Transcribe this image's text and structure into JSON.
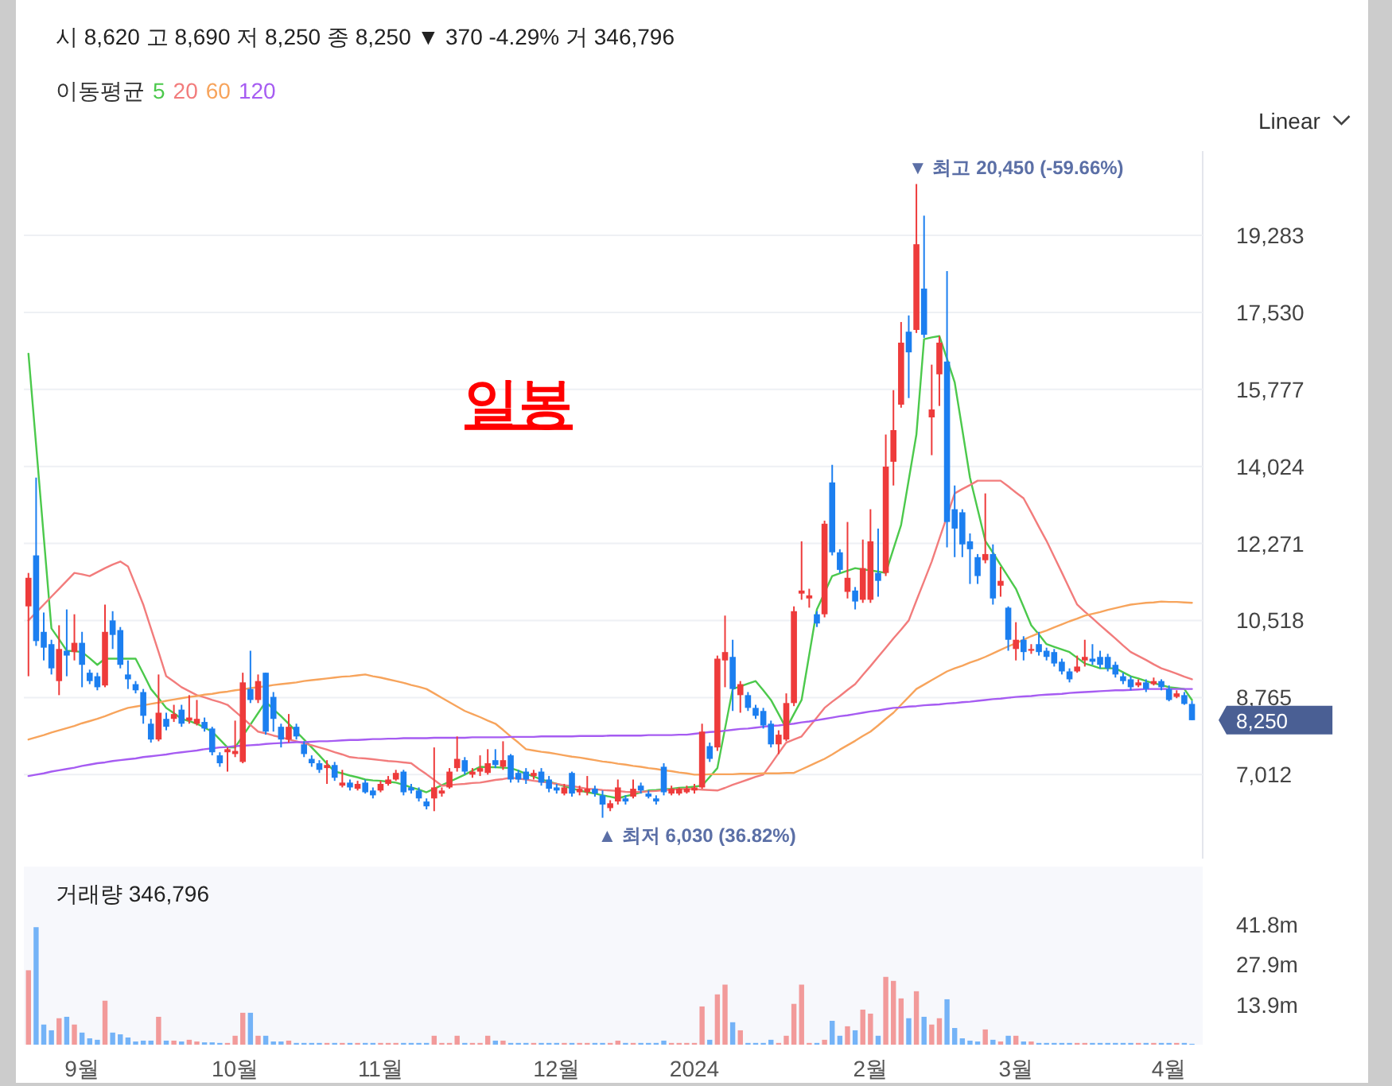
{
  "chart_data": [
    {
      "type": "candlestick",
      "title": "시 8,620  고 8,690  저 8,250  종 8,250  ▼ 370 -4.29%  거 346,796",
      "categories": [
        null,
        null,
        null,
        null,
        null,
        null,
        null,
        null,
        null,
        null,
        null,
        null,
        null,
        null,
        null,
        null,
        null,
        null,
        null,
        null,
        null,
        null,
        null,
        null,
        null,
        null,
        null,
        null,
        null,
        null,
        null,
        null,
        null,
        null,
        null,
        null,
        null,
        null,
        null,
        null,
        null,
        null,
        null,
        null,
        null,
        null,
        null,
        null,
        null,
        null,
        null,
        null,
        null,
        null,
        null,
        null,
        null,
        null,
        null,
        null,
        null,
        null,
        null,
        null,
        null,
        null,
        null,
        null,
        null,
        null,
        null,
        null,
        null,
        null,
        null,
        null,
        null,
        null,
        null,
        null,
        null,
        null,
        null,
        null,
        null,
        null,
        null,
        null,
        null,
        null,
        null,
        null,
        null,
        null,
        null,
        null,
        null,
        null,
        null,
        null,
        null,
        null,
        null,
        null,
        null,
        null,
        null,
        null,
        null,
        null,
        null,
        null,
        null,
        null,
        null,
        null,
        null,
        null,
        null,
        null,
        null,
        null,
        null,
        null,
        null,
        null,
        null,
        null,
        null,
        null,
        null,
        null,
        null,
        null,
        null,
        null,
        null,
        null,
        null,
        null,
        null,
        null,
        null,
        null,
        null,
        null,
        null,
        null,
        null,
        null,
        null,
        null,
        null
      ],
      "ohlc": [
        [
          10840,
          11600,
          9250,
          11490
        ],
        [
          12000,
          13770,
          9940,
          10050
        ],
        [
          10260,
          10700,
          9610,
          9900
        ],
        [
          9980,
          10080,
          9290,
          9430
        ],
        [
          9140,
          10410,
          8820,
          9870
        ],
        [
          9830,
          10770,
          9250,
          9720
        ],
        [
          9800,
          10660,
          9610,
          10010
        ],
        [
          10010,
          10260,
          9000,
          9510
        ],
        [
          9330,
          9400,
          9070,
          9140
        ],
        [
          9250,
          9330,
          8930,
          9000
        ],
        [
          9040,
          10880,
          9000,
          10260
        ],
        [
          10520,
          10730,
          9870,
          10190
        ],
        [
          10300,
          10370,
          9430,
          9510
        ],
        [
          9290,
          9610,
          8960,
          9180
        ],
        [
          9070,
          9140,
          8860,
          8930
        ],
        [
          8890,
          8960,
          8170,
          8350
        ],
        [
          8170,
          8280,
          7740,
          7810
        ],
        [
          7810,
          9290,
          7770,
          8420
        ],
        [
          8280,
          8420,
          8020,
          8100
        ],
        [
          8280,
          8600,
          8210,
          8390
        ],
        [
          8490,
          8600,
          8100,
          8170
        ],
        [
          8240,
          8820,
          8170,
          8310
        ],
        [
          8170,
          8710,
          8130,
          8280
        ],
        [
          8210,
          8310,
          7990,
          8060
        ],
        [
          8060,
          8100,
          7450,
          7520
        ],
        [
          7450,
          7520,
          7190,
          7270
        ],
        [
          7520,
          7630,
          7080,
          7590
        ],
        [
          7480,
          8240,
          7410,
          7550
        ],
        [
          7300,
          9330,
          7270,
          9110
        ],
        [
          8960,
          9830,
          8640,
          8710
        ],
        [
          8710,
          9290,
          8640,
          9140
        ],
        [
          9330,
          9330,
          7920,
          7990
        ],
        [
          8780,
          8890,
          7990,
          8280
        ],
        [
          8100,
          8170,
          7630,
          7810
        ],
        [
          7810,
          8390,
          7740,
          8100
        ],
        [
          8100,
          8170,
          7810,
          7880
        ],
        [
          7700,
          7770,
          7410,
          7480
        ],
        [
          7370,
          7450,
          7190,
          7270
        ],
        [
          7270,
          7340,
          7050,
          7120
        ],
        [
          7160,
          7340,
          6800,
          7230
        ],
        [
          7230,
          7300,
          6870,
          6940
        ],
        [
          6760,
          7120,
          6720,
          6830
        ],
        [
          6830,
          6900,
          6650,
          6720
        ],
        [
          6690,
          6870,
          6650,
          6800
        ],
        [
          6830,
          6900,
          6580,
          6610
        ],
        [
          6650,
          6720,
          6470,
          6540
        ],
        [
          6650,
          6870,
          6610,
          6800
        ],
        [
          6800,
          6980,
          6760,
          6900
        ],
        [
          6900,
          7120,
          6870,
          7050
        ],
        [
          7080,
          7120,
          6540,
          6610
        ],
        [
          6720,
          6800,
          6580,
          6650
        ],
        [
          6650,
          6720,
          6400,
          6470
        ],
        [
          6400,
          6470,
          6220,
          6290
        ],
        [
          6470,
          7630,
          6180,
          6720
        ],
        [
          6580,
          6720,
          6510,
          6650
        ],
        [
          6720,
          7160,
          6690,
          7080
        ],
        [
          7160,
          7880,
          7080,
          7370
        ],
        [
          7340,
          7410,
          7010,
          7080
        ],
        [
          7010,
          7160,
          6940,
          7080
        ],
        [
          7080,
          7450,
          6980,
          7160
        ],
        [
          7050,
          7590,
          7010,
          7270
        ],
        [
          7340,
          7590,
          7160,
          7230
        ],
        [
          7190,
          7770,
          7120,
          7340
        ],
        [
          7450,
          7480,
          6830,
          6900
        ],
        [
          7050,
          7120,
          6830,
          6900
        ],
        [
          7080,
          7160,
          6800,
          6900
        ],
        [
          6980,
          7120,
          6900,
          7050
        ],
        [
          7080,
          7160,
          6760,
          6830
        ],
        [
          6900,
          6980,
          6610,
          6690
        ],
        [
          6720,
          6800,
          6580,
          6650
        ],
        [
          6580,
          6800,
          6540,
          6720
        ],
        [
          7050,
          7080,
          6510,
          6580
        ],
        [
          6610,
          6760,
          6540,
          6690
        ],
        [
          6610,
          6980,
          6540,
          6690
        ],
        [
          6690,
          6760,
          6510,
          6580
        ],
        [
          6540,
          6650,
          6030,
          6330
        ],
        [
          6250,
          6430,
          6180,
          6360
        ],
        [
          6400,
          6900,
          6330,
          6720
        ],
        [
          6470,
          6540,
          6330,
          6400
        ],
        [
          6510,
          6900,
          6470,
          6690
        ],
        [
          6760,
          6830,
          6580,
          6650
        ],
        [
          6580,
          6650,
          6470,
          6510
        ],
        [
          6470,
          6540,
          6330,
          6400
        ],
        [
          7190,
          7270,
          6540,
          6610
        ],
        [
          6580,
          6760,
          6540,
          6690
        ],
        [
          6580,
          6720,
          6540,
          6690
        ],
        [
          6610,
          6760,
          6580,
          6690
        ],
        [
          6650,
          6800,
          6580,
          6720
        ],
        [
          6720,
          8170,
          6690,
          7990
        ],
        [
          7660,
          7740,
          7300,
          7370
        ],
        [
          7630,
          9720,
          7550,
          9650
        ],
        [
          9610,
          10630,
          9000,
          9800
        ],
        [
          9690,
          10080,
          8460,
          8960
        ],
        [
          8820,
          9140,
          8420,
          9070
        ],
        [
          8820,
          8890,
          8460,
          8530
        ],
        [
          8530,
          8600,
          8280,
          8350
        ],
        [
          8460,
          8530,
          8060,
          8130
        ],
        [
          8170,
          8240,
          7630,
          7700
        ],
        [
          7700,
          8020,
          7480,
          7920
        ],
        [
          7810,
          8860,
          7770,
          8640
        ],
        [
          8640,
          10840,
          8570,
          10730
        ],
        [
          11130,
          12320,
          10990,
          11200
        ],
        [
          11020,
          11240,
          10810,
          11090
        ],
        [
          10660,
          10730,
          10370,
          10450
        ],
        [
          10660,
          12790,
          10590,
          12720
        ],
        [
          13660,
          14060,
          12000,
          12070
        ],
        [
          12070,
          12140,
          11600,
          11670
        ],
        [
          11170,
          12760,
          11020,
          11490
        ],
        [
          11200,
          11280,
          10770,
          10950
        ],
        [
          10990,
          12360,
          10920,
          11710
        ],
        [
          10990,
          13050,
          10920,
          12320
        ],
        [
          11600,
          12610,
          11060,
          11420
        ],
        [
          11600,
          14750,
          11530,
          14020
        ],
        [
          14130,
          15760,
          13590,
          14850
        ],
        [
          15430,
          17310,
          15360,
          16840
        ],
        [
          17090,
          17460,
          15580,
          16620
        ],
        [
          17130,
          20450,
          17060,
          19080
        ],
        [
          18070,
          19730,
          16950,
          17020
        ],
        [
          15140,
          16340,
          14280,
          15320
        ],
        [
          16120,
          16990,
          15400,
          16840
        ],
        [
          16410,
          18470,
          12180,
          12760
        ],
        [
          13050,
          13590,
          11960,
          12610
        ],
        [
          12980,
          13050,
          11960,
          12250
        ],
        [
          12320,
          12500,
          11350,
          12140
        ],
        [
          11960,
          12030,
          11350,
          11530
        ],
        [
          11890,
          13410,
          11820,
          12030
        ],
        [
          12030,
          12250,
          10880,
          11020
        ],
        [
          11310,
          11740,
          11060,
          11420
        ],
        [
          10810,
          10840,
          9830,
          10080
        ],
        [
          9870,
          10480,
          9610,
          10080
        ],
        [
          10080,
          10160,
          9610,
          9800
        ],
        [
          9830,
          9980,
          9760,
          9870
        ],
        [
          9980,
          10260,
          9720,
          9800
        ],
        [
          9830,
          9900,
          9610,
          9690
        ],
        [
          9800,
          9870,
          9470,
          9540
        ],
        [
          9580,
          9650,
          9290,
          9360
        ],
        [
          9360,
          9430,
          9110,
          9180
        ],
        [
          9360,
          9720,
          9330,
          9470
        ],
        [
          9610,
          10080,
          9470,
          9690
        ],
        [
          9650,
          9980,
          9510,
          9580
        ],
        [
          9690,
          9830,
          9430,
          9510
        ],
        [
          9690,
          9760,
          9360,
          9430
        ],
        [
          9510,
          9580,
          9220,
          9290
        ],
        [
          9250,
          9330,
          9070,
          9140
        ],
        [
          9180,
          9250,
          8930,
          9000
        ],
        [
          9040,
          9180,
          9000,
          9110
        ],
        [
          9110,
          9180,
          8890,
          8960
        ],
        [
          9070,
          9220,
          9040,
          9140
        ],
        [
          9140,
          9180,
          8930,
          9000
        ],
        [
          8960,
          9040,
          8680,
          8710
        ],
        [
          8780,
          8930,
          8750,
          8860
        ],
        [
          8820,
          8890,
          8600,
          8620
        ],
        [
          8620,
          8690,
          8250,
          8250
        ]
      ],
      "colors": [
        "#ee3b3b",
        "#1c7ff0",
        "#1c7ff0",
        "#1c7ff0",
        "#ee3b3b",
        "#1c7ff0",
        "#ee3b3b",
        "#1c7ff0",
        "#1c7ff0",
        "#1c7ff0",
        "#ee3b3b",
        "#1c7ff0",
        "#1c7ff0",
        "#1c7ff0",
        "#1c7ff0",
        "#1c7ff0",
        "#1c7ff0",
        "#ee3b3b",
        "#1c7ff0",
        "#ee3b3b",
        "#1c7ff0",
        "#ee3b3b",
        "#ee3b3b",
        "#1c7ff0",
        "#1c7ff0",
        "#1c7ff0",
        "#ee3b3b",
        "#ee3b3b",
        "#ee3b3b",
        "#1c7ff0",
        "#ee3b3b",
        "#1c7ff0",
        "#1c7ff0",
        "#1c7ff0",
        "#ee3b3b",
        "#1c7ff0",
        "#1c7ff0",
        "#1c7ff0",
        "#1c7ff0",
        "#ee3b3b",
        "#1c7ff0",
        "#ee3b3b",
        "#1c7ff0",
        "#ee3b3b",
        "#1c7ff0",
        "#1c7ff0",
        "#ee3b3b",
        "#ee3b3b",
        "#ee3b3b",
        "#1c7ff0",
        "#1c7ff0",
        "#1c7ff0",
        "#1c7ff0",
        "#ee3b3b",
        "#ee3b3b",
        "#ee3b3b",
        "#ee3b3b",
        "#1c7ff0",
        "#ee3b3b",
        "#ee3b3b",
        "#ee3b3b",
        "#1c7ff0",
        "#ee3b3b",
        "#1c7ff0",
        "#1c7ff0",
        "#1c7ff0",
        "#ee3b3b",
        "#1c7ff0",
        "#1c7ff0",
        "#1c7ff0",
        "#ee3b3b",
        "#1c7ff0",
        "#ee3b3b",
        "#ee3b3b",
        "#1c7ff0",
        "#1c7ff0",
        "#ee3b3b",
        "#ee3b3b",
        "#1c7ff0",
        "#ee3b3b",
        "#1c7ff0",
        "#1c7ff0",
        "#1c7ff0",
        "#1c7ff0",
        "#ee3b3b",
        "#ee3b3b",
        "#ee3b3b",
        "#ee3b3b",
        "#ee3b3b",
        "#1c7ff0",
        "#ee3b3b",
        "#ee3b3b",
        "#1c7ff0",
        "#ee3b3b",
        "#1c7ff0",
        "#1c7ff0",
        "#1c7ff0",
        "#1c7ff0",
        "#ee3b3b",
        "#ee3b3b",
        "#ee3b3b",
        "#ee3b3b",
        "#ee3b3b",
        "#1c7ff0",
        "#ee3b3b",
        "#1c7ff0",
        "#1c7ff0",
        "#ee3b3b",
        "#1c7ff0",
        "#ee3b3b",
        "#ee3b3b",
        "#1c7ff0",
        "#ee3b3b",
        "#ee3b3b",
        "#ee3b3b",
        "#1c7ff0",
        "#ee3b3b",
        "#1c7ff0",
        "#ee3b3b",
        "#ee3b3b",
        "#1c7ff0",
        "#1c7ff0",
        "#1c7ff0",
        "#1c7ff0",
        "#1c7ff0",
        "#ee3b3b",
        "#1c7ff0",
        "#ee3b3b",
        "#1c7ff0",
        "#ee3b3b",
        "#1c7ff0",
        "#ee3b3b",
        "#1c7ff0",
        "#1c7ff0",
        "#1c7ff0",
        "#1c7ff0",
        "#1c7ff0",
        "#ee3b3b",
        "#ee3b3b",
        "#1c7ff0",
        "#1c7ff0",
        "#1c7ff0",
        "#1c7ff0",
        "#1c7ff0",
        "#1c7ff0",
        "#ee3b3b",
        "#1c7ff0",
        "#ee3b3b",
        "#1c7ff0",
        "#1c7ff0",
        "#ee3b3b",
        "#1c7ff0",
        "#1c7ff0"
      ],
      "series": [
        {
          "type": "line",
          "name": "5",
          "color": "#4cc94c",
          "values": [
            16590,
            14510,
            12420,
            10340,
            10090,
            9830,
            9820,
            9800,
            9660,
            9510,
            9650,
            9650,
            9650,
            9650,
            9650,
            9310,
            8960,
            8750,
            8530,
            8410,
            8280,
            8230,
            8170,
            8080,
            7990,
            7810,
            7630,
            7630,
            7890,
            8150,
            8410,
            8670,
            8500,
            8340,
            8170,
            7990,
            7810,
            7630,
            7450,
            7260,
            7080,
            7040,
            6990,
            6950,
            6900,
            6880,
            6870,
            6850,
            6830,
            6780,
            6720,
            6670,
            6610,
            6690,
            6770,
            6850,
            6930,
            7010,
            7100,
            7190,
            7180,
            7180,
            7170,
            7160,
            7100,
            7030,
            6970,
            6900,
            6850,
            6800,
            6750,
            6700,
            6650,
            6610,
            6580,
            6540,
            6510,
            6470,
            6520,
            6560,
            6610,
            6650,
            6660,
            6680,
            6690,
            6710,
            6720,
            6740,
            6760,
            6960,
            7160,
            8060,
            8960,
            9020,
            9080,
            9140,
            8930,
            8710,
            8390,
            8060,
            8390,
            8710,
            9740,
            10770,
            11150,
            11530,
            11590,
            11650,
            11710,
            11680,
            11660,
            11630,
            11600,
            12150,
            12690,
            13720,
            14750,
            16920,
            16960,
            16990,
            16470,
            15940,
            14860,
            13770,
            13050,
            12330,
            12060,
            11780,
            11510,
            11240,
            10830,
            10410,
            10200,
            9980,
            9920,
            9860,
            9800,
            9670,
            9540,
            9490,
            9430,
            9430,
            9430,
            9340,
            9250,
            9200,
            9140,
            9090,
            9050,
            9000,
            8980,
            8960,
            8710
          ]
        },
        {
          "type": "line",
          "name": "20",
          "color": "#f27c7c",
          "values": [
            10520,
            10700,
            10880,
            11060,
            11240,
            11420,
            11600,
            11570,
            11530,
            11620,
            11710,
            11790,
            11860,
            11750,
            11320,
            10880,
            10340,
            9800,
            9250,
            9130,
            9000,
            8910,
            8820,
            8770,
            8710,
            8660,
            8600,
            8450,
            8300,
            8140,
            7990,
            7950,
            7900,
            7860,
            7810,
            7770,
            7720,
            7680,
            7630,
            7580,
            7520,
            7470,
            7410,
            7390,
            7380,
            7360,
            7340,
            7320,
            7310,
            7290,
            7270,
            7140,
            7020,
            6890,
            6760,
            6770,
            6790,
            6800,
            6820,
            6830,
            6860,
            6890,
            6910,
            6940,
            6920,
            6900,
            6870,
            6850,
            6830,
            6800,
            6770,
            6750,
            6720,
            6690,
            6680,
            6660,
            6650,
            6640,
            6620,
            6610,
            6620,
            6630,
            6640,
            6660,
            6670,
            6680,
            6690,
            6680,
            6670,
            6660,
            6650,
            6710,
            6780,
            6840,
            6900,
            6960,
            7010,
            7250,
            7500,
            7740,
            7810,
            7880,
            8100,
            8310,
            8530,
            8670,
            8800,
            8940,
            9070,
            9280,
            9480,
            9690,
            9900,
            10110,
            10310,
            10520,
            10970,
            11410,
            11860,
            12380,
            12890,
            13410,
            13510,
            13600,
            13700,
            13700,
            13700,
            13700,
            13570,
            13430,
            13300,
            12980,
            12650,
            12330,
            11970,
            11610,
            11240,
            10880,
            10720,
            10570,
            10410,
            10260,
            10110,
            9950,
            9800,
            9710,
            9620,
            9520,
            9430,
            9370,
            9310,
            9240,
            9180
          ]
        },
        {
          "type": "line",
          "name": "60",
          "color": "#f7a45c",
          "values": [
            7810,
            7860,
            7910,
            7970,
            8020,
            8070,
            8120,
            8180,
            8230,
            8280,
            8340,
            8410,
            8470,
            8530,
            8560,
            8590,
            8620,
            8650,
            8690,
            8720,
            8750,
            8780,
            8800,
            8830,
            8850,
            8880,
            8900,
            8930,
            8950,
            8980,
            9000,
            9020,
            9050,
            9070,
            9090,
            9110,
            9140,
            9160,
            9180,
            9200,
            9220,
            9240,
            9250,
            9270,
            9290,
            9250,
            9220,
            9180,
            9140,
            9100,
            9050,
            9010,
            8960,
            8860,
            8760,
            8660,
            8560,
            8460,
            8390,
            8320,
            8240,
            8170,
            8030,
            7880,
            7740,
            7590,
            7560,
            7530,
            7510,
            7480,
            7450,
            7420,
            7400,
            7370,
            7340,
            7310,
            7290,
            7260,
            7240,
            7210,
            7190,
            7160,
            7140,
            7110,
            7090,
            7060,
            7040,
            7010,
            7010,
            7020,
            7020,
            7020,
            7020,
            7030,
            7030,
            7030,
            7040,
            7040,
            7040,
            7050,
            7050,
            7130,
            7210,
            7290,
            7370,
            7470,
            7580,
            7680,
            7780,
            7890,
            7990,
            8130,
            8280,
            8420,
            8600,
            8780,
            8960,
            9060,
            9160,
            9260,
            9360,
            9430,
            9490,
            9560,
            9620,
            9690,
            9770,
            9850,
            9930,
            10000,
            10080,
            10160,
            10230,
            10290,
            10360,
            10430,
            10500,
            10560,
            10630,
            10670,
            10710,
            10760,
            10800,
            10840,
            10880,
            10900,
            10920,
            10930,
            10950,
            10940,
            10940,
            10930,
            10920
          ]
        },
        {
          "type": "line",
          "name": "120",
          "color": "#a65cf2",
          "values": [
            6980,
            7010,
            7040,
            7080,
            7110,
            7140,
            7170,
            7210,
            7240,
            7270,
            7290,
            7320,
            7340,
            7360,
            7380,
            7410,
            7430,
            7450,
            7470,
            7500,
            7520,
            7540,
            7560,
            7590,
            7610,
            7630,
            7640,
            7660,
            7670,
            7680,
            7690,
            7710,
            7720,
            7730,
            7740,
            7750,
            7750,
            7760,
            7770,
            7770,
            7780,
            7790,
            7800,
            7800,
            7810,
            7820,
            7820,
            7830,
            7830,
            7840,
            7840,
            7840,
            7840,
            7850,
            7850,
            7850,
            7850,
            7850,
            7860,
            7860,
            7860,
            7860,
            7860,
            7870,
            7870,
            7870,
            7870,
            7880,
            7880,
            7880,
            7880,
            7880,
            7890,
            7890,
            7890,
            7890,
            7900,
            7900,
            7900,
            7900,
            7900,
            7910,
            7910,
            7910,
            7910,
            7920,
            7920,
            7940,
            7960,
            7980,
            7990,
            8010,
            8030,
            8050,
            8060,
            8080,
            8100,
            8120,
            8130,
            8150,
            8170,
            8200,
            8220,
            8250,
            8280,
            8310,
            8340,
            8360,
            8390,
            8420,
            8450,
            8470,
            8500,
            8530,
            8540,
            8560,
            8570,
            8590,
            8600,
            8610,
            8630,
            8640,
            8660,
            8670,
            8690,
            8710,
            8730,
            8740,
            8760,
            8780,
            8790,
            8800,
            8820,
            8830,
            8840,
            8850,
            8870,
            8880,
            8890,
            8900,
            8910,
            8920,
            8930,
            8930,
            8940,
            8950,
            8960,
            8960,
            8960,
            8960,
            8960,
            8960,
            8960
          ]
        }
      ],
      "legend": "top left",
      "legend_title": "이동평균",
      "ylim": [
        5100,
        21200
      ],
      "yticks": [
        {
          "value": 7012,
          "label": "7,012"
        },
        {
          "value": 8765,
          "label": "8,765"
        },
        {
          "value": 10518,
          "label": "10,518"
        },
        {
          "value": 12271,
          "label": "12,271"
        },
        {
          "value": 14024,
          "label": "14,024"
        },
        {
          "value": 15777,
          "label": "15,777"
        },
        {
          "value": 17530,
          "label": "17,530"
        },
        {
          "value": 19283,
          "label": "19,283"
        }
      ],
      "grid": "y",
      "tick_labels": "y",
      "annotations": [
        "▼ 최고 20,450 (-59.66%)",
        "▲ 최저 6,030 (36.82%)",
        "8,250",
        "일봉",
        "Linear"
      ]
    },
    {
      "type": "bar",
      "title": "거래량 346,796",
      "categories": [
        null,
        null,
        null,
        null,
        null,
        null,
        null,
        "9월",
        null,
        null,
        null,
        null,
        null,
        null,
        null,
        null,
        null,
        null,
        null,
        null,
        null,
        null,
        null,
        null,
        null,
        null,
        null,
        "10월",
        null,
        null,
        null,
        null,
        null,
        null,
        null,
        null,
        null,
        null,
        null,
        null,
        null,
        null,
        null,
        null,
        null,
        null,
        "11월",
        null,
        null,
        null,
        null,
        null,
        null,
        null,
        null,
        null,
        null,
        null,
        null,
        null,
        null,
        null,
        null,
        null,
        null,
        null,
        null,
        null,
        null,
        "12월",
        null,
        null,
        null,
        null,
        null,
        null,
        null,
        null,
        null,
        null,
        null,
        null,
        null,
        null,
        null,
        null,
        null,
        "2024",
        null,
        null,
        null,
        null,
        null,
        null,
        null,
        null,
        null,
        null,
        null,
        null,
        null,
        null,
        null,
        null,
        null,
        null,
        null,
        null,
        null,
        null,
        "2월",
        null,
        null,
        null,
        null,
        null,
        null,
        null,
        null,
        null,
        null,
        null,
        null,
        null,
        null,
        null,
        null,
        null,
        null,
        "3월",
        null,
        null,
        null,
        null,
        null,
        null,
        null,
        null,
        null,
        null,
        null,
        null,
        null,
        null,
        null,
        null,
        null,
        null,
        null,
        "4월",
        null,
        null,
        null
      ],
      "values": [
        25.9,
        40.9,
        7.0,
        5.0,
        9.2,
        9.7,
        7.0,
        4.2,
        2.2,
        1.7,
        15.3,
        4.2,
        3.6,
        2.5,
        1.1,
        1.4,
        1.4,
        9.7,
        1.4,
        1.4,
        1.1,
        1.7,
        1.1,
        0.8,
        0.8,
        0.6,
        0.6,
        3.1,
        11.1,
        11.1,
        3.1,
        3.1,
        1.1,
        1.1,
        1.4,
        0.6,
        0.6,
        0.6,
        0.6,
        0.6,
        0.6,
        0.6,
        0.6,
        0.6,
        0.6,
        0.6,
        0.6,
        0.6,
        0.6,
        0.6,
        0.6,
        0.6,
        0.6,
        3.1,
        0.6,
        0.6,
        3.1,
        0.6,
        0.6,
        0.6,
        3.1,
        1.4,
        1.4,
        0.6,
        0.6,
        0.6,
        0.6,
        0.6,
        0.6,
        0.6,
        0.6,
        0.6,
        0.6,
        0.6,
        0.6,
        0.6,
        0.6,
        1.4,
        0.6,
        0.6,
        0.6,
        0.6,
        0.6,
        1.4,
        0.6,
        0.6,
        0.6,
        0.6,
        13.3,
        1.7,
        17.5,
        20.9,
        7.8,
        5.0,
        0.6,
        0.6,
        0.6,
        1.7,
        0.6,
        3.1,
        14.2,
        20.9,
        0.6,
        0.6,
        1.7,
        8.3,
        3.1,
        6.4,
        5.0,
        12.2,
        10.8,
        3.1,
        23.6,
        22.2,
        16.1,
        9.2,
        18.6,
        9.7,
        7.0,
        9.2,
        15.8,
        5.8,
        2.2,
        1.4,
        1.1,
        5.3,
        1.7,
        1.1,
        3.1,
        3.1,
        1.1,
        1.1,
        0.6,
        0.6,
        0.6,
        0.6,
        0.6,
        0.6,
        0.6,
        0.6,
        0.6,
        0.6,
        0.6,
        0.6,
        0.6,
        0.6,
        0.6,
        0.6,
        0.6,
        0.6,
        0.6,
        0.6,
        0.3
      ],
      "colors": [
        "#f29a9a",
        "#74b3f7",
        "#74b3f7",
        "#74b3f7",
        "#f29a9a",
        "#74b3f7",
        "#f29a9a",
        "#74b3f7",
        "#74b3f7",
        "#74b3f7",
        "#f29a9a",
        "#74b3f7",
        "#74b3f7",
        "#74b3f7",
        "#74b3f7",
        "#74b3f7",
        "#74b3f7",
        "#f29a9a",
        "#74b3f7",
        "#f29a9a",
        "#74b3f7",
        "#f29a9a",
        "#f29a9a",
        "#74b3f7",
        "#74b3f7",
        "#74b3f7",
        "#f29a9a",
        "#f29a9a",
        "#f29a9a",
        "#74b3f7",
        "#f29a9a",
        "#74b3f7",
        "#74b3f7",
        "#74b3f7",
        "#f29a9a",
        "#74b3f7",
        "#74b3f7",
        "#74b3f7",
        "#74b3f7",
        "#f29a9a",
        "#74b3f7",
        "#f29a9a",
        "#74b3f7",
        "#f29a9a",
        "#74b3f7",
        "#74b3f7",
        "#f29a9a",
        "#f29a9a",
        "#f29a9a",
        "#74b3f7",
        "#74b3f7",
        "#74b3f7",
        "#74b3f7",
        "#f29a9a",
        "#f29a9a",
        "#f29a9a",
        "#f29a9a",
        "#74b3f7",
        "#f29a9a",
        "#f29a9a",
        "#f29a9a",
        "#74b3f7",
        "#f29a9a",
        "#74b3f7",
        "#74b3f7",
        "#74b3f7",
        "#f29a9a",
        "#74b3f7",
        "#74b3f7",
        "#74b3f7",
        "#f29a9a",
        "#74b3f7",
        "#f29a9a",
        "#f29a9a",
        "#74b3f7",
        "#74b3f7",
        "#f29a9a",
        "#f29a9a",
        "#74b3f7",
        "#f29a9a",
        "#74b3f7",
        "#74b3f7",
        "#74b3f7",
        "#74b3f7",
        "#f29a9a",
        "#f29a9a",
        "#f29a9a",
        "#f29a9a",
        "#f29a9a",
        "#74b3f7",
        "#f29a9a",
        "#f29a9a",
        "#74b3f7",
        "#f29a9a",
        "#74b3f7",
        "#74b3f7",
        "#74b3f7",
        "#74b3f7",
        "#f29a9a",
        "#f29a9a",
        "#f29a9a",
        "#f29a9a",
        "#f29a9a",
        "#74b3f7",
        "#f29a9a",
        "#74b3f7",
        "#74b3f7",
        "#f29a9a",
        "#74b3f7",
        "#f29a9a",
        "#f29a9a",
        "#74b3f7",
        "#f29a9a",
        "#f29a9a",
        "#f29a9a",
        "#74b3f7",
        "#f29a9a",
        "#74b3f7",
        "#f29a9a",
        "#f29a9a",
        "#74b3f7",
        "#74b3f7",
        "#74b3f7",
        "#74b3f7",
        "#74b3f7",
        "#f29a9a",
        "#74b3f7",
        "#f29a9a",
        "#74b3f7",
        "#f29a9a",
        "#74b3f7",
        "#f29a9a",
        "#74b3f7",
        "#74b3f7",
        "#74b3f7",
        "#74b3f7",
        "#74b3f7",
        "#f29a9a",
        "#f29a9a",
        "#74b3f7",
        "#74b3f7",
        "#74b3f7",
        "#74b3f7",
        "#74b3f7",
        "#74b3f7",
        "#f29a9a",
        "#74b3f7",
        "#f29a9a",
        "#74b3f7",
        "#74b3f7",
        "#f29a9a",
        "#74b3f7",
        "#74b3f7"
      ],
      "ylim": [
        0,
        62
      ],
      "yticks": [
        {
          "value": 13.9,
          "label": "13.9m"
        },
        {
          "value": 27.9,
          "label": "27.9m"
        },
        {
          "value": 41.8,
          "label": "41.8m"
        }
      ]
    }
  ]
}
